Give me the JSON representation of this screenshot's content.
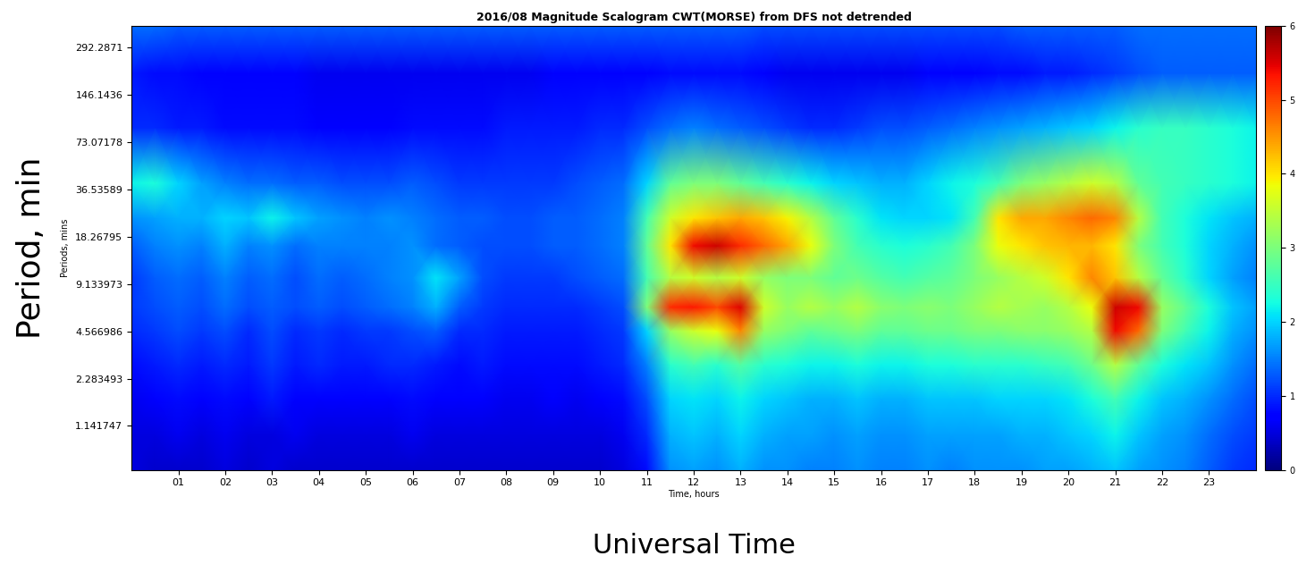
{
  "chart_data": {
    "type": "heatmap",
    "title": "2016/08 Magnitude Scalogram CWT(MORSE) from DFS not detrended",
    "x_label": "Time, hours",
    "y_label": "Periods, mins",
    "annotations": [
      "Period, min",
      "Universal Time"
    ],
    "color": "jet",
    "log": "y",
    "grid": false,
    "xlim": [
      0,
      24
    ],
    "ylim": [
      0.6,
      400
    ],
    "xticks": [
      {
        "value": 1,
        "label": "01"
      },
      {
        "value": 2,
        "label": "02"
      },
      {
        "value": 3,
        "label": "03"
      },
      {
        "value": 4,
        "label": "04"
      },
      {
        "value": 5,
        "label": "05"
      },
      {
        "value": 6,
        "label": "06"
      },
      {
        "value": 7,
        "label": "07"
      },
      {
        "value": 8,
        "label": "08"
      },
      {
        "value": 9,
        "label": "09"
      },
      {
        "value": 10,
        "label": "10"
      },
      {
        "value": 11,
        "label": "11"
      },
      {
        "value": 12,
        "label": "12"
      },
      {
        "value": 13,
        "label": "13"
      },
      {
        "value": 14,
        "label": "14"
      },
      {
        "value": 15,
        "label": "15"
      },
      {
        "value": 16,
        "label": "16"
      },
      {
        "value": 17,
        "label": "17"
      },
      {
        "value": 18,
        "label": "18"
      },
      {
        "value": 19,
        "label": "19"
      },
      {
        "value": 20,
        "label": "20"
      },
      {
        "value": 21,
        "label": "21"
      },
      {
        "value": 22,
        "label": "22"
      },
      {
        "value": 23,
        "label": "23"
      }
    ],
    "yticks": [
      1.141747,
      2.283493,
      4.566986,
      9.133973,
      18.26795,
      36.53589,
      73.07178,
      146.1436,
      292.2871
    ],
    "x": [
      0,
      0.5,
      1,
      1.5,
      2,
      2.5,
      3,
      3.5,
      4,
      4.5,
      5,
      5.5,
      6,
      6.5,
      7,
      7.5,
      8,
      8.5,
      9,
      9.5,
      10,
      10.5,
      11,
      11.5,
      12,
      12.5,
      13,
      13.5,
      14,
      14.5,
      15,
      15.5,
      16,
      16.5,
      17,
      17.5,
      18,
      18.5,
      19,
      19.5,
      20,
      20.5,
      21,
      21.5,
      22,
      22.5,
      23,
      23.5,
      24
    ],
    "y": [
      0.6,
      1.0,
      1.7,
      2.8,
      4.6,
      6.5,
      10,
      16,
      24,
      40,
      90,
      200,
      400
    ],
    "cells": [
      [
        0.5,
        0.4,
        0.4,
        0.4,
        0.5,
        0.4,
        0.5,
        0.4,
        0.4,
        0.4,
        0.4,
        0.4,
        0.4,
        0.4,
        0.4,
        0.4,
        0.4,
        0.4,
        0.4,
        0.4,
        0.4,
        0.5,
        0.8,
        1.6,
        1.7,
        1.6,
        1.8,
        1.6,
        1.6,
        1.5,
        1.5,
        1.6,
        1.5,
        1.5,
        1.6,
        1.5,
        1.6,
        1.6,
        1.6,
        1.7,
        1.7,
        1.8,
        1.9,
        1.7,
        1.6,
        1.5,
        1.3,
        1.1,
        1.0
      ],
      [
        0.5,
        0.5,
        0.6,
        0.5,
        0.6,
        0.5,
        0.5,
        0.6,
        0.5,
        0.5,
        0.5,
        0.5,
        0.6,
        0.5,
        0.5,
        0.5,
        0.5,
        0.5,
        0.5,
        0.5,
        0.5,
        0.6,
        1.0,
        1.8,
        1.9,
        1.8,
        2.0,
        1.8,
        1.7,
        1.7,
        1.6,
        1.7,
        1.6,
        1.6,
        1.7,
        1.7,
        1.7,
        1.7,
        1.8,
        1.8,
        1.9,
        2.0,
        2.2,
        1.9,
        1.7,
        1.6,
        1.4,
        1.2,
        1.1
      ],
      [
        0.6,
        0.7,
        0.8,
        0.7,
        0.8,
        0.7,
        0.9,
        0.7,
        0.7,
        0.7,
        0.7,
        0.7,
        0.8,
        0.7,
        0.7,
        0.7,
        0.6,
        0.6,
        0.7,
        0.6,
        0.7,
        0.8,
        1.2,
        2.0,
        2.1,
        2.0,
        2.2,
        2.0,
        1.9,
        1.8,
        1.8,
        1.9,
        1.8,
        1.8,
        1.9,
        1.9,
        1.9,
        2.0,
        2.0,
        2.0,
        2.1,
        2.3,
        2.6,
        2.2,
        1.9,
        1.8,
        1.6,
        1.4,
        1.2
      ],
      [
        0.8,
        0.9,
        1.0,
        0.9,
        1.0,
        0.9,
        1.1,
        0.9,
        1.0,
        0.9,
        0.9,
        1.0,
        1.0,
        0.9,
        0.8,
        0.9,
        0.8,
        0.8,
        0.8,
        0.8,
        0.9,
        1.0,
        1.5,
        2.4,
        2.6,
        2.4,
        2.7,
        2.4,
        2.3,
        2.2,
        2.2,
        2.3,
        2.2,
        2.2,
        2.3,
        2.3,
        2.4,
        2.4,
        2.4,
        2.5,
        2.6,
        2.9,
        3.4,
        2.8,
        2.3,
        2.1,
        1.9,
        1.6,
        1.4
      ],
      [
        1.0,
        1.1,
        1.2,
        1.1,
        1.2,
        1.0,
        1.2,
        1.0,
        1.1,
        1.0,
        1.1,
        1.1,
        1.2,
        1.3,
        1.0,
        1.0,
        0.9,
        0.9,
        0.9,
        0.9,
        1.0,
        1.1,
        2.0,
        3.2,
        3.6,
        3.8,
        4.6,
        3.2,
        3.0,
        2.8,
        2.9,
        3.0,
        2.8,
        2.8,
        2.9,
        2.9,
        3.0,
        3.0,
        3.1,
        3.1,
        3.2,
        3.4,
        5.4,
        4.8,
        3.0,
        2.6,
        2.2,
        1.8,
        1.6
      ],
      [
        1.1,
        1.2,
        1.3,
        1.2,
        1.4,
        1.2,
        1.3,
        1.2,
        1.3,
        1.2,
        1.3,
        1.4,
        1.5,
        1.8,
        1.3,
        1.1,
        1.0,
        1.0,
        1.0,
        1.0,
        1.1,
        1.2,
        3.0,
        5.2,
        5.3,
        5.0,
        5.5,
        3.6,
        3.2,
        3.4,
        3.2,
        3.4,
        3.1,
        3.0,
        3.1,
        3.0,
        3.2,
        3.4,
        3.3,
        3.2,
        3.4,
        3.8,
        5.6,
        5.4,
        3.2,
        2.8,
        2.3,
        1.9,
        1.7
      ],
      [
        1.1,
        1.3,
        1.4,
        1.3,
        1.5,
        1.3,
        1.4,
        1.2,
        1.4,
        1.3,
        1.4,
        1.5,
        1.6,
        2.1,
        1.7,
        1.2,
        1.1,
        1.1,
        1.1,
        1.2,
        1.3,
        1.4,
        2.6,
        3.4,
        3.6,
        3.4,
        3.6,
        3.2,
        3.0,
        3.0,
        2.8,
        2.9,
        2.7,
        2.6,
        2.7,
        2.8,
        3.0,
        3.2,
        3.4,
        3.6,
        4.0,
        4.6,
        4.2,
        3.4,
        2.8,
        2.4,
        2.0,
        1.7,
        1.5
      ],
      [
        1.3,
        1.5,
        1.6,
        1.5,
        1.8,
        1.5,
        1.6,
        1.4,
        1.5,
        1.5,
        1.5,
        1.5,
        1.6,
        1.4,
        1.3,
        1.2,
        1.2,
        1.2,
        1.3,
        1.3,
        1.4,
        1.5,
        2.8,
        4.0,
        5.4,
        5.6,
        5.2,
        4.8,
        4.4,
        3.8,
        3.0,
        2.6,
        2.4,
        2.3,
        2.4,
        2.6,
        3.0,
        3.8,
        4.0,
        4.2,
        4.3,
        4.3,
        4.0,
        3.0,
        2.6,
        2.3,
        2.0,
        1.8,
        1.6
      ],
      [
        1.6,
        1.7,
        1.8,
        1.8,
        2.0,
        1.9,
        2.2,
        1.9,
        1.7,
        1.6,
        1.5,
        1.6,
        1.5,
        1.4,
        1.3,
        1.3,
        1.2,
        1.2,
        1.3,
        1.3,
        1.4,
        1.5,
        2.6,
        3.6,
        4.0,
        4.2,
        4.4,
        4.2,
        3.9,
        3.4,
        2.8,
        2.4,
        2.1,
        2.0,
        2.0,
        2.1,
        2.6,
        4.0,
        4.4,
        4.4,
        4.6,
        4.8,
        4.6,
        3.4,
        2.6,
        2.3,
        2.1,
        1.9,
        1.8
      ],
      [
        2.2,
        2.3,
        2.0,
        1.7,
        1.5,
        1.4,
        1.4,
        1.3,
        1.3,
        1.2,
        1.2,
        1.2,
        1.3,
        1.2,
        1.1,
        1.1,
        1.1,
        1.1,
        1.1,
        1.2,
        1.3,
        1.4,
        2.0,
        2.8,
        3.0,
        3.0,
        2.8,
        2.6,
        2.4,
        2.2,
        2.0,
        1.9,
        1.8,
        1.8,
        2.0,
        2.2,
        2.3,
        2.6,
        3.0,
        3.2,
        3.4,
        3.6,
        3.4,
        2.8,
        2.6,
        2.5,
        2.4,
        2.3,
        2.2
      ],
      [
        1.0,
        1.0,
        0.9,
        0.9,
        0.8,
        0.8,
        0.8,
        0.8,
        0.7,
        0.7,
        0.7,
        0.7,
        0.8,
        0.8,
        0.8,
        0.8,
        0.9,
        0.9,
        0.9,
        0.9,
        1.0,
        1.0,
        1.2,
        1.4,
        1.5,
        1.4,
        1.3,
        1.2,
        1.1,
        1.0,
        1.0,
        1.1,
        1.2,
        1.2,
        1.3,
        1.4,
        1.5,
        1.6,
        1.7,
        1.8,
        1.9,
        2.0,
        2.2,
        2.4,
        2.5,
        2.5,
        2.4,
        2.3,
        2.2
      ],
      [
        0.9,
        0.8,
        0.8,
        0.7,
        0.7,
        0.7,
        0.7,
        0.7,
        0.6,
        0.6,
        0.6,
        0.6,
        0.6,
        0.6,
        0.6,
        0.6,
        0.6,
        0.6,
        0.7,
        0.7,
        0.7,
        0.7,
        0.7,
        0.8,
        0.8,
        0.8,
        0.8,
        0.7,
        0.6,
        0.6,
        0.6,
        0.6,
        0.6,
        0.6,
        0.7,
        0.7,
        0.7,
        0.8,
        0.8,
        0.9,
        0.9,
        1.0,
        1.1,
        1.2,
        1.3,
        1.3,
        1.3,
        1.3,
        1.3
      ],
      [
        1.4,
        1.4,
        1.3,
        1.3,
        1.3,
        1.3,
        1.3,
        1.3,
        1.3,
        1.3,
        1.3,
        1.3,
        1.3,
        1.3,
        1.3,
        1.3,
        1.3,
        1.3,
        1.3,
        1.3,
        1.3,
        1.3,
        1.3,
        1.3,
        1.3,
        1.3,
        1.3,
        1.2,
        1.2,
        1.2,
        1.2,
        1.2,
        1.2,
        1.2,
        1.2,
        1.2,
        1.2,
        1.2,
        1.3,
        1.3,
        1.3,
        1.3,
        1.3,
        1.4,
        1.4,
        1.4,
        1.4,
        1.4,
        1.4
      ]
    ],
    "colorbar_range": [
      0,
      6
    ],
    "colorbar_ticks": [
      0,
      1,
      2,
      3,
      4,
      5,
      6
    ]
  }
}
